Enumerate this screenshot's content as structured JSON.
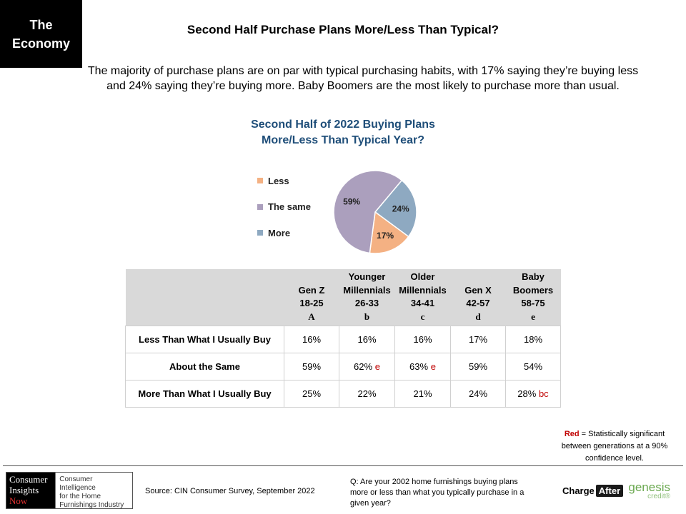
{
  "section_tag": [
    "The",
    "Economy"
  ],
  "title": "Second Half Purchase Plans More/Less Than Typical?",
  "summary": "The majority of purchase plans are on par with typical purchasing habits, with 17% saying they’re buying less and 24% saying they’re buying more. Baby Boomers are the most likely to purchase more than usual.",
  "chart_data": {
    "type": "pie",
    "title": [
      "Second Half of 2022 Buying Plans",
      "More/Less Than Typical Year?"
    ],
    "categories": [
      "Less",
      "The same",
      "More"
    ],
    "values": [
      17,
      59,
      24
    ],
    "labels": [
      "17%",
      "59%",
      "24%"
    ],
    "colors": [
      "#f4b183",
      "#ab9fbd",
      "#8ea9c1"
    ],
    "legend_position": "left"
  },
  "table": {
    "columns": [
      {
        "lines": [
          "",
          "Gen Z",
          "18-25"
        ],
        "letter": "A"
      },
      {
        "lines": [
          "Younger",
          "Millennials",
          "26-33"
        ],
        "letter": "b"
      },
      {
        "lines": [
          "Older",
          "Millennials",
          "34-41"
        ],
        "letter": "c"
      },
      {
        "lines": [
          "",
          "Gen X",
          "42-57"
        ],
        "letter": "d"
      },
      {
        "lines": [
          "Baby",
          "Boomers",
          "58-75"
        ],
        "letter": "e"
      }
    ],
    "rows": [
      {
        "label": "Less Than What I Usually Buy",
        "cells": [
          {
            "v": "16%",
            "sig": ""
          },
          {
            "v": "16%",
            "sig": ""
          },
          {
            "v": "16%",
            "sig": ""
          },
          {
            "v": "17%",
            "sig": ""
          },
          {
            "v": "18%",
            "sig": ""
          }
        ]
      },
      {
        "label": "About the Same",
        "cells": [
          {
            "v": "59%",
            "sig": ""
          },
          {
            "v": "62%",
            "sig": "e"
          },
          {
            "v": "63%",
            "sig": "e"
          },
          {
            "v": "59%",
            "sig": ""
          },
          {
            "v": "54%",
            "sig": ""
          }
        ]
      },
      {
        "label": "More Than What I Usually Buy",
        "cells": [
          {
            "v": "25%",
            "sig": ""
          },
          {
            "v": "22%",
            "sig": ""
          },
          {
            "v": "21%",
            "sig": ""
          },
          {
            "v": "24%",
            "sig": ""
          },
          {
            "v": "28%",
            "sig": "bc"
          }
        ]
      }
    ]
  },
  "note": {
    "red": "Red",
    "text": " = Statistically significant between generations at a 90% confidence level."
  },
  "footer": {
    "logo_left": [
      "Consumer",
      "Insights",
      "Now"
    ],
    "logo_right": [
      "Consumer Intelligence",
      "for the Home",
      "Furnishings Industry"
    ],
    "source": "Source: CIN Consumer Survey, September 2022",
    "question": "Q: Are your 2002 home furnishings buying plans more or less than what you typically purchase in a given year?",
    "chargeafter": [
      "Charge",
      "After"
    ],
    "genesis": [
      "genesis",
      "credit®"
    ]
  }
}
